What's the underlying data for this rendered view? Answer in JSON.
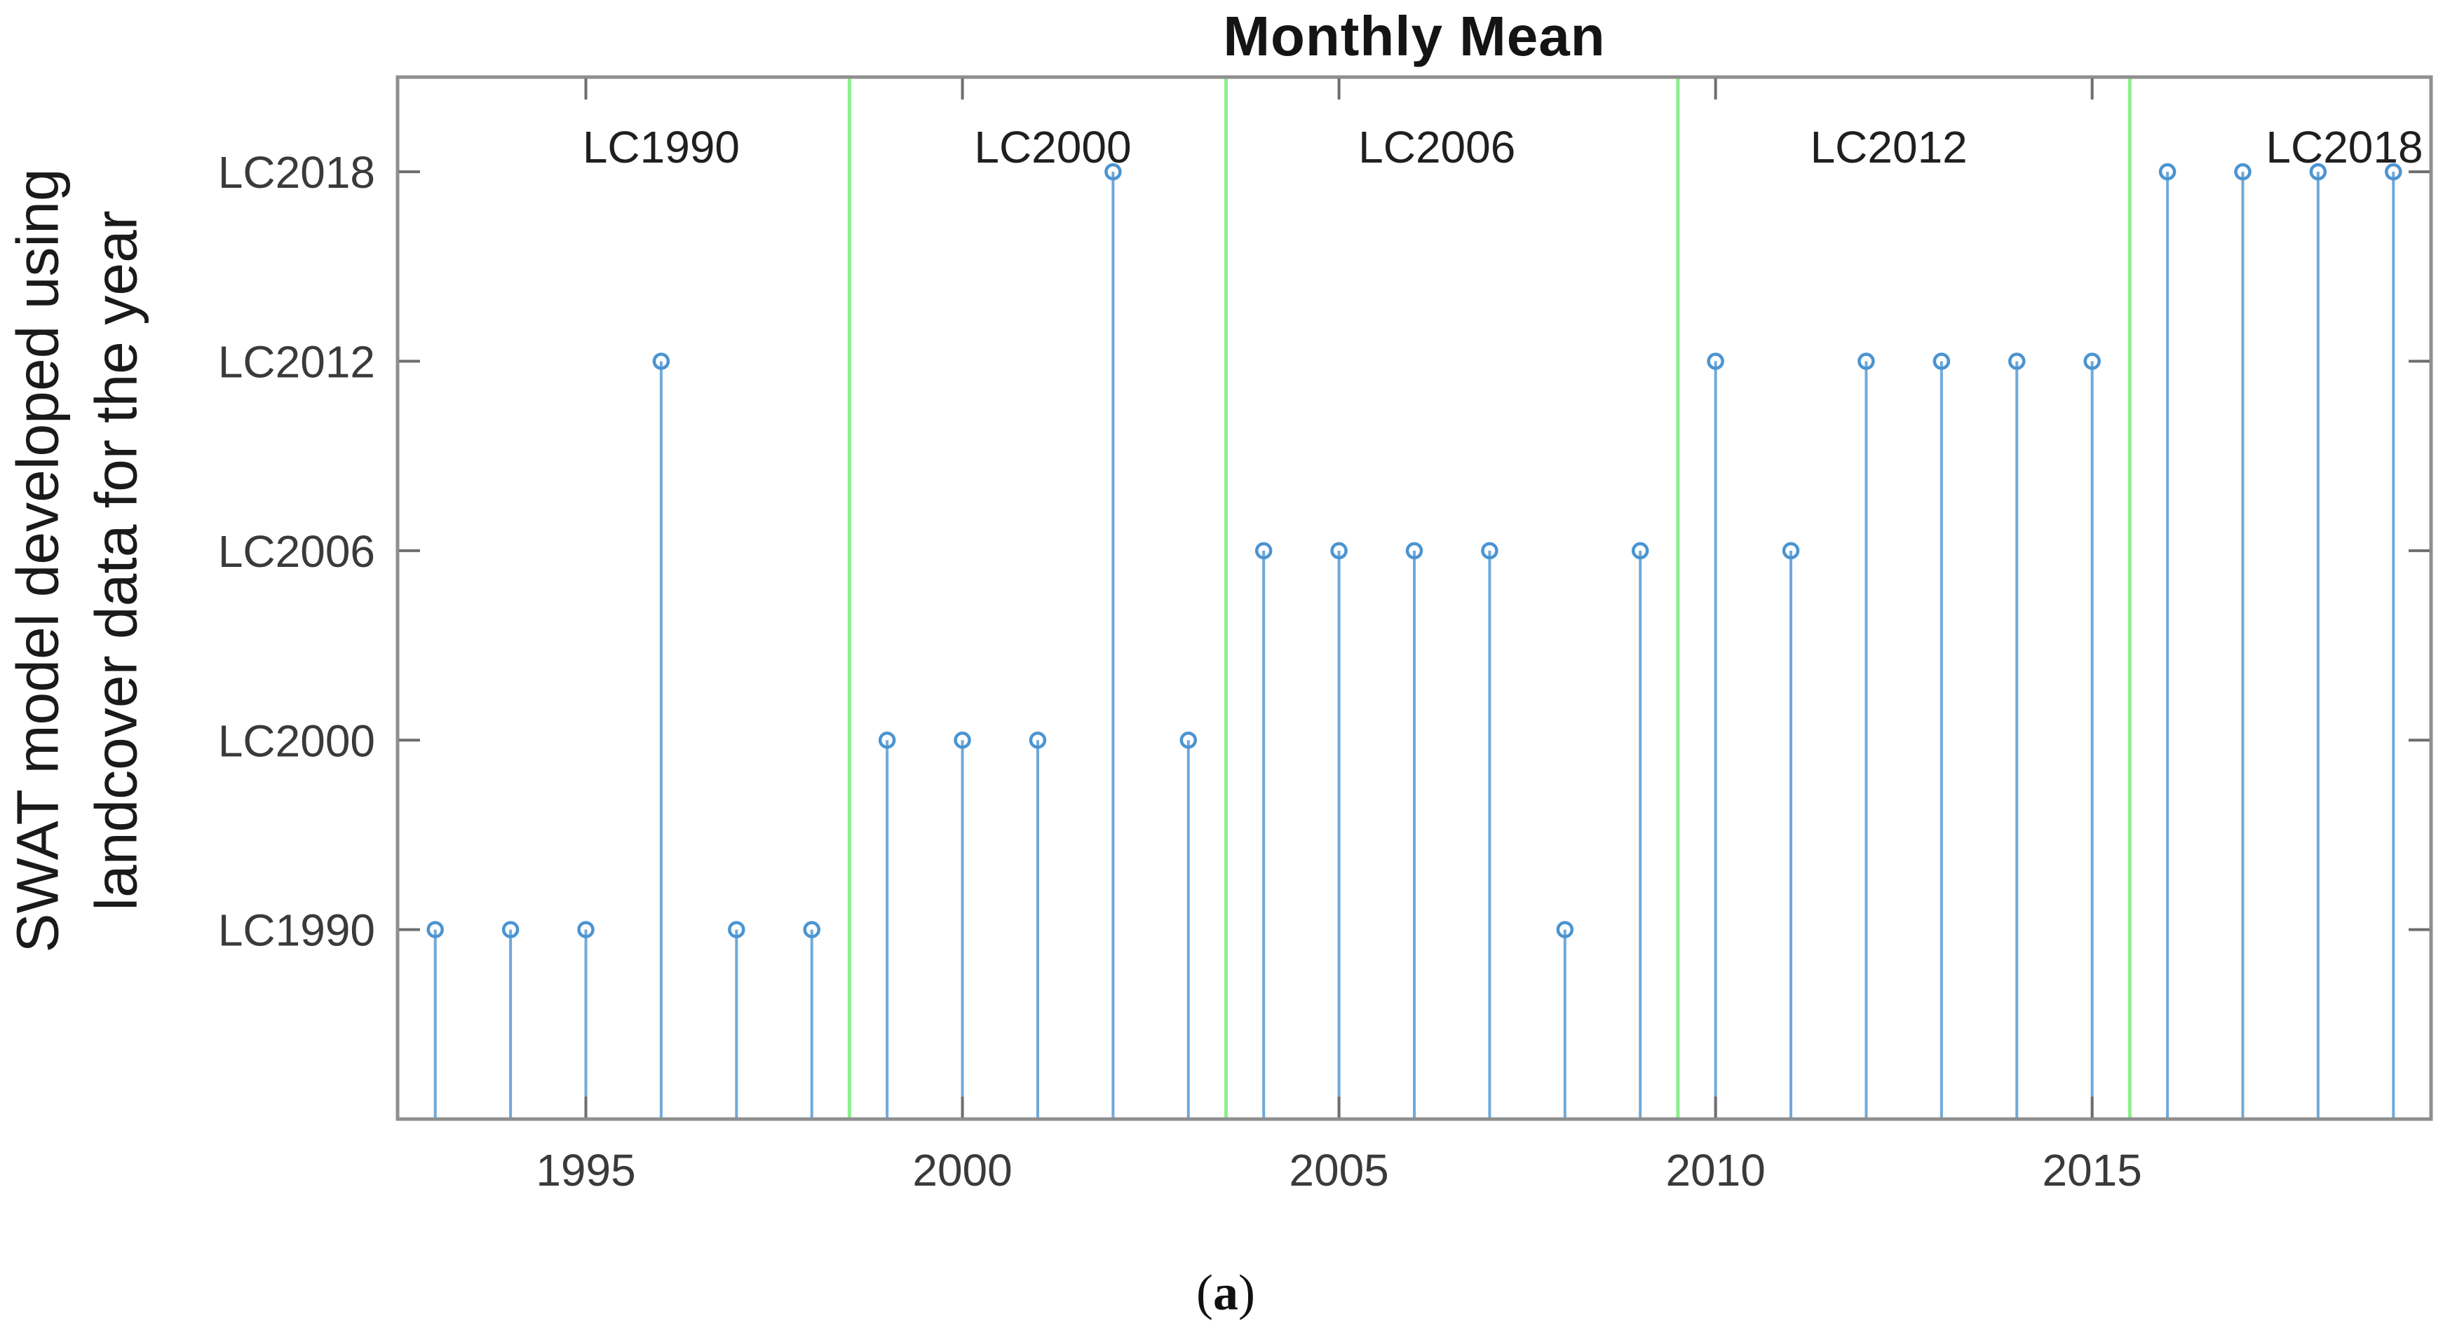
{
  "title": "Monthly Mean",
  "caption": {
    "open": "(",
    "letter": "a",
    "close": ")"
  },
  "chart_data": {
    "type": "stem",
    "title": "Monthly Mean",
    "ylabel_lines": {
      "line1": "SWAT model developed using",
      "line2": "landcover data for the year"
    },
    "xlabel": "",
    "x": [
      1993,
      1994,
      1995,
      1996,
      1997,
      1998,
      1999,
      2000,
      2001,
      2002,
      2003,
      2004,
      2005,
      2006,
      2007,
      2008,
      2009,
      2010,
      2011,
      2012,
      2013,
      2014,
      2015,
      2016,
      2017,
      2018,
      2019
    ],
    "values": [
      "LC1990",
      "LC1990",
      "LC1990",
      "LC2012",
      "LC1990",
      "LC1990",
      "LC2000",
      "LC2000",
      "LC2000",
      "LC2018",
      "LC2000",
      "LC2006",
      "LC2006",
      "LC2006",
      "LC2006",
      "LC1990",
      "LC2006",
      "LC2012",
      "LC2006",
      "LC2012",
      "LC2012",
      "LC2012",
      "LC2012",
      "LC2018",
      "LC2018",
      "LC2018",
      "LC2018"
    ],
    "y_categories": [
      "LC1990",
      "LC2000",
      "LC2006",
      "LC2012",
      "LC2018"
    ],
    "y_tick_labels": [
      "LC1990",
      "LC2000",
      "LC2006",
      "LC2012",
      "LC2018"
    ],
    "x_ticks": [
      1995,
      2000,
      2005,
      2010,
      2015
    ],
    "xlim": [
      1992.5,
      2019.5
    ],
    "ylim": [
      0,
      5.5
    ],
    "grid": false,
    "legend": null,
    "dividers": [
      1998.5,
      2003.5,
      2009.5,
      2015.5
    ],
    "section_labels": [
      {
        "label": "LC1990",
        "year": 1996.0
      },
      {
        "label": "LC2000",
        "year": 2001.2
      },
      {
        "label": "LC2006",
        "year": 2006.3
      },
      {
        "label": "LC2012",
        "year": 2012.3
      },
      {
        "label": "LC2018",
        "year": 2018.35
      }
    ],
    "colors": {
      "stem": "#6fa9da",
      "marker": "#4b94d1",
      "divider": "#8cef8c",
      "frame": "#8f8f8f",
      "tick": "#6e6e6e",
      "tick_label": "#3a3a3a",
      "section_label": "#1f1f1f",
      "title": "#141414"
    }
  }
}
